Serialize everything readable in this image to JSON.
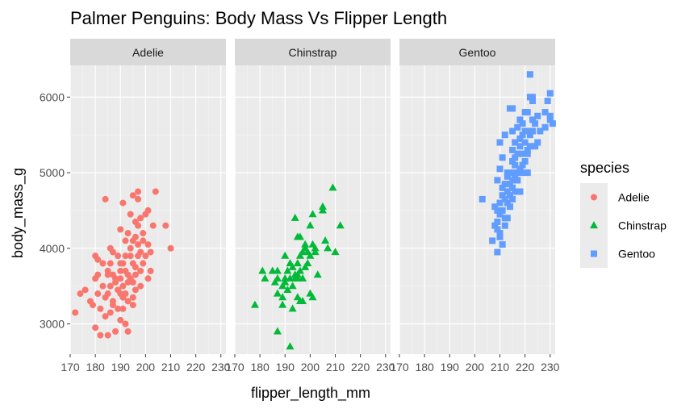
{
  "chart_data": {
    "type": "scatter",
    "title": "Palmer Penguins: Body Mass Vs Flipper Length",
    "xlabel": "flipper_length_mm",
    "ylabel": "body_mass_g",
    "xlim": [
      170,
      232
    ],
    "ylim": [
      2600,
      6420
    ],
    "x_ticks": [
      170,
      180,
      190,
      200,
      210,
      220,
      230
    ],
    "y_ticks": [
      3000,
      4000,
      5000,
      6000
    ],
    "facet_by": "species",
    "grid": true,
    "legend": {
      "title": "species",
      "position": "right",
      "entries": [
        {
          "label": "Adelie",
          "color": "#F8766D",
          "shape": "circle"
        },
        {
          "label": "Chinstrap",
          "color": "#00BA38",
          "shape": "triangle"
        },
        {
          "label": "Gentoo",
          "color": "#619CFF",
          "shape": "square"
        }
      ]
    },
    "panels": [
      {
        "label": "Adelie",
        "color": "#F8766D",
        "shape": "circle",
        "points": [
          [
            172,
            3150
          ],
          [
            174,
            3400
          ],
          [
            176,
            3450
          ],
          [
            178,
            3300
          ],
          [
            179,
            3250
          ],
          [
            180,
            3600
          ],
          [
            180,
            3900
          ],
          [
            180,
            2950
          ],
          [
            181,
            3650
          ],
          [
            181,
            3400
          ],
          [
            181,
            3850
          ],
          [
            182,
            3200
          ],
          [
            182,
            2850
          ],
          [
            183,
            3500
          ],
          [
            183,
            3800
          ],
          [
            184,
            4650
          ],
          [
            184,
            3350
          ],
          [
            184,
            3100
          ],
          [
            185,
            3650
          ],
          [
            185,
            3400
          ],
          [
            185,
            2850
          ],
          [
            185,
            3700
          ],
          [
            186,
            3500
          ],
          [
            186,
            3800
          ],
          [
            186,
            3150
          ],
          [
            186,
            4000
          ],
          [
            187,
            3250
          ],
          [
            187,
            3950
          ],
          [
            187,
            3300
          ],
          [
            187,
            3650
          ],
          [
            188,
            3600
          ],
          [
            188,
            2900
          ],
          [
            188,
            3550
          ],
          [
            189,
            3450
          ],
          [
            189,
            3200
          ],
          [
            189,
            3900
          ],
          [
            190,
            3800
          ],
          [
            190,
            3400
          ],
          [
            190,
            3050
          ],
          [
            190,
            3600
          ],
          [
            190,
            4250
          ],
          [
            190,
            3700
          ],
          [
            191,
            3350
          ],
          [
            191,
            3500
          ],
          [
            191,
            4600
          ],
          [
            191,
            3200
          ],
          [
            191,
            3800
          ],
          [
            192,
            3700
          ],
          [
            192,
            3900
          ],
          [
            192,
            4100
          ],
          [
            192,
            3400
          ],
          [
            192,
            3000
          ],
          [
            193,
            4200
          ],
          [
            193,
            3650
          ],
          [
            193,
            3550
          ],
          [
            193,
            3300
          ],
          [
            193,
            2900
          ],
          [
            194,
            4450
          ],
          [
            194,
            3900
          ],
          [
            194,
            3600
          ],
          [
            194,
            4000
          ],
          [
            195,
            3800
          ],
          [
            195,
            4100
          ],
          [
            195,
            3550
          ],
          [
            195,
            4700
          ],
          [
            195,
            3350
          ],
          [
            195,
            3250
          ],
          [
            196,
            4350
          ],
          [
            196,
            3750
          ],
          [
            196,
            4150
          ],
          [
            196,
            3450
          ],
          [
            196,
            3650
          ],
          [
            197,
            4300
          ],
          [
            197,
            3900
          ],
          [
            197,
            4050
          ],
          [
            197,
            4750
          ],
          [
            197,
            4650
          ],
          [
            198,
            4400
          ],
          [
            198,
            3700
          ],
          [
            198,
            3950
          ],
          [
            198,
            3500
          ],
          [
            199,
            4200
          ],
          [
            199,
            4100
          ],
          [
            199,
            3800
          ],
          [
            200,
            4450
          ],
          [
            200,
            3900
          ],
          [
            201,
            4500
          ],
          [
            201,
            4050
          ],
          [
            201,
            3600
          ],
          [
            202,
            3700
          ],
          [
            202,
            3950
          ],
          [
            203,
            4300
          ],
          [
            204,
            4750
          ],
          [
            208,
            4300
          ],
          [
            210,
            4000
          ]
        ]
      },
      {
        "label": "Chinstrap",
        "color": "#00BA38",
        "shape": "triangle",
        "points": [
          [
            178,
            3250
          ],
          [
            181,
            3700
          ],
          [
            182,
            3600
          ],
          [
            185,
            3700
          ],
          [
            186,
            3550
          ],
          [
            187,
            3600
          ],
          [
            187,
            3400
          ],
          [
            187,
            3700
          ],
          [
            187,
            2900
          ],
          [
            189,
            3500
          ],
          [
            189,
            3350
          ],
          [
            189,
            3250
          ],
          [
            190,
            3600
          ],
          [
            190,
            3900
          ],
          [
            190,
            3550
          ],
          [
            191,
            3700
          ],
          [
            191,
            3450
          ],
          [
            192,
            3800
          ],
          [
            192,
            3600
          ],
          [
            192,
            2700
          ],
          [
            193,
            3500
          ],
          [
            193,
            3750
          ],
          [
            193,
            3200
          ],
          [
            194,
            3650
          ],
          [
            194,
            3600
          ],
          [
            194,
            4400
          ],
          [
            195,
            3800
          ],
          [
            195,
            3650
          ],
          [
            195,
            3350
          ],
          [
            195,
            4150
          ],
          [
            195,
            3600
          ],
          [
            196,
            3300
          ],
          [
            196,
            4150
          ],
          [
            196,
            3700
          ],
          [
            196,
            3900
          ],
          [
            197,
            3950
          ],
          [
            197,
            3600
          ],
          [
            197,
            3300
          ],
          [
            198,
            3750
          ],
          [
            198,
            4000
          ],
          [
            198,
            4050
          ],
          [
            199,
            3950
          ],
          [
            199,
            3800
          ],
          [
            200,
            3400
          ],
          [
            200,
            4300
          ],
          [
            200,
            3900
          ],
          [
            201,
            4450
          ],
          [
            201,
            4050
          ],
          [
            201,
            3350
          ],
          [
            202,
            3950
          ],
          [
            202,
            4000
          ],
          [
            203,
            3650
          ],
          [
            205,
            4550
          ],
          [
            205,
            4500
          ],
          [
            206,
            4100
          ],
          [
            207,
            4000
          ],
          [
            209,
            4800
          ],
          [
            210,
            3950
          ],
          [
            212,
            4300
          ]
        ]
      },
      {
        "label": "Gentoo",
        "color": "#619CFF",
        "shape": "square",
        "points": [
          [
            203,
            4650
          ],
          [
            207,
            4100
          ],
          [
            208,
            4300
          ],
          [
            208,
            4550
          ],
          [
            209,
            3950
          ],
          [
            209,
            4500
          ],
          [
            209,
            4350
          ],
          [
            209,
            4900
          ],
          [
            209,
            4250
          ],
          [
            210,
            4150
          ],
          [
            210,
            5050
          ],
          [
            210,
            4200
          ],
          [
            210,
            4450
          ],
          [
            210,
            4600
          ],
          [
            210,
            5400
          ],
          [
            211,
            4500
          ],
          [
            211,
            4700
          ],
          [
            211,
            4800
          ],
          [
            211,
            4050
          ],
          [
            211,
            5200
          ],
          [
            212,
            4850
          ],
          [
            212,
            4400
          ],
          [
            212,
            4650
          ],
          [
            212,
            5500
          ],
          [
            212,
            4300
          ],
          [
            213,
            4600
          ],
          [
            213,
            5000
          ],
          [
            213,
            4750
          ],
          [
            213,
            4950
          ],
          [
            213,
            4400
          ],
          [
            214,
            4850
          ],
          [
            214,
            5850
          ],
          [
            214,
            4700
          ],
          [
            214,
            4550
          ],
          [
            215,
            5000
          ],
          [
            215,
            4800
          ],
          [
            215,
            5150
          ],
          [
            215,
            5550
          ],
          [
            215,
            4650
          ],
          [
            215,
            5300
          ],
          [
            215,
            5850
          ],
          [
            215,
            4900
          ],
          [
            216,
            5100
          ],
          [
            216,
            4750
          ],
          [
            216,
            5200
          ],
          [
            216,
            5400
          ],
          [
            216,
            4950
          ],
          [
            217,
            5000
          ],
          [
            217,
            5600
          ],
          [
            217,
            5250
          ],
          [
            217,
            4900
          ],
          [
            218,
            5700
          ],
          [
            218,
            5050
          ],
          [
            218,
            4750
          ],
          [
            218,
            5350
          ],
          [
            218,
            5450
          ],
          [
            219,
            5250
          ],
          [
            219,
            5100
          ],
          [
            219,
            5500
          ],
          [
            219,
            5650
          ],
          [
            219,
            5000
          ],
          [
            220,
            5400
          ],
          [
            220,
            5800
          ],
          [
            220,
            5550
          ],
          [
            220,
            5150
          ],
          [
            221,
            5000
          ],
          [
            221,
            5550
          ],
          [
            221,
            5250
          ],
          [
            221,
            5800
          ],
          [
            221,
            5300
          ],
          [
            222,
            6300
          ],
          [
            222,
            6000
          ],
          [
            222,
            5500
          ],
          [
            222,
            5350
          ],
          [
            223,
            5550
          ],
          [
            223,
            5700
          ],
          [
            223,
            6000
          ],
          [
            223,
            5950
          ],
          [
            224,
            5350
          ],
          [
            224,
            5650
          ],
          [
            225,
            5400
          ],
          [
            225,
            5750
          ],
          [
            226,
            5550
          ],
          [
            228,
            5800
          ],
          [
            228,
            5600
          ],
          [
            229,
            5950
          ],
          [
            230,
            5700
          ],
          [
            230,
            6050
          ],
          [
            230,
            5750
          ],
          [
            231,
            5650
          ]
        ]
      }
    ]
  }
}
